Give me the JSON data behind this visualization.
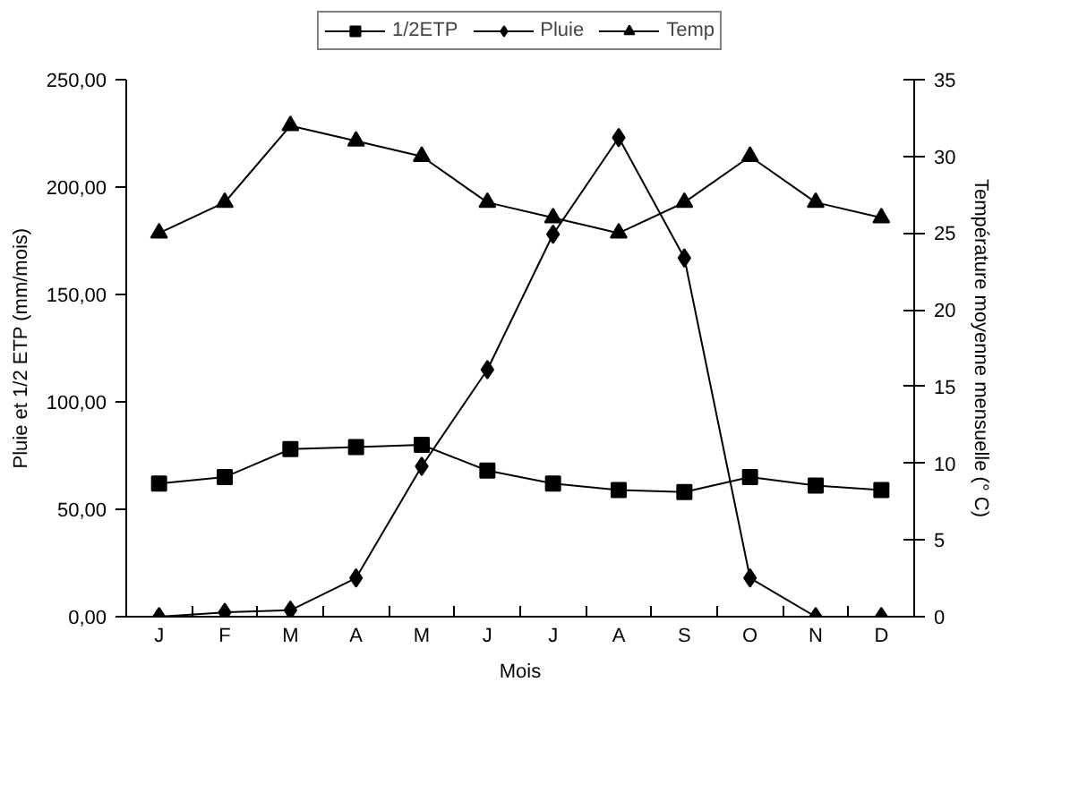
{
  "chart_data": {
    "type": "line",
    "xlabel": "Mois",
    "ylabel": "Pluie et 1/2 ETP (mm/mois)",
    "y2label": "Température moyenne mensuelle (° C)",
    "categories": [
      "J",
      "F",
      "M",
      "A",
      "M",
      "J",
      "J",
      "A",
      "S",
      "O",
      "N",
      "D"
    ],
    "series": [
      {
        "name": "1/2ETP",
        "color": "#000000",
        "marker": "square",
        "values": [
          62,
          65,
          78,
          79,
          80,
          68,
          62,
          59,
          58,
          65,
          61,
          59
        ]
      },
      {
        "name": "Pluie",
        "color": "#000000",
        "marker": "diamond",
        "values": [
          0,
          2,
          3,
          18,
          70,
          115,
          178,
          223,
          167,
          18,
          0,
          0
        ]
      },
      {
        "name": "Temp",
        "color": "#000000",
        "marker": "triangle",
        "axis": "y2",
        "values": [
          25,
          27,
          32,
          31,
          30,
          27,
          26,
          25,
          27,
          30,
          27,
          26
        ]
      }
    ],
    "ylim": [
      0,
      250
    ],
    "yticks": [
      {
        "value": 0,
        "label": "0,00"
      },
      {
        "value": 50,
        "label": "50,00"
      },
      {
        "value": 100,
        "label": "100,00"
      },
      {
        "value": 150,
        "label": "150,00"
      },
      {
        "value": 200,
        "label": "200,00"
      },
      {
        "value": 250,
        "label": "250,00"
      }
    ],
    "y2lim": [
      0,
      35
    ],
    "y2ticks": [
      0,
      5,
      10,
      15,
      20,
      25,
      30,
      35
    ],
    "grid": false,
    "legend": "top",
    "line_style": "solid"
  }
}
